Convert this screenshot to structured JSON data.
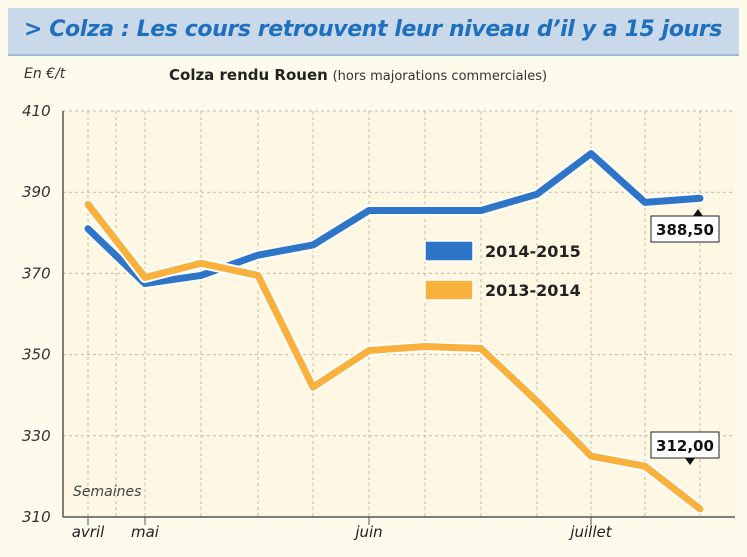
{
  "header": {
    "title": "> Colza : Les cours retrouvent leur niveau d’il y a 15 jours"
  },
  "chart_data": {
    "type": "line",
    "title": "Colza rendu Rouen",
    "subtitle": "(hors majorations commerciales)",
    "ylabel": "En €/t",
    "xlabel": "Semaines",
    "ylim": [
      310,
      410
    ],
    "yticks": [
      310,
      330,
      350,
      370,
      390,
      410
    ],
    "grid": true,
    "legend_position": "center-right",
    "x": [
      0,
      1,
      2,
      3,
      4,
      5,
      6,
      7,
      8,
      9,
      10,
      11
    ],
    "month_labels": [
      {
        "label": "avril",
        "x": 0
      },
      {
        "label": "mai",
        "x": 1
      },
      {
        "label": "juin",
        "x": 5
      },
      {
        "label": "juillet",
        "x": 9
      }
    ],
    "series": [
      {
        "name": "2014-2015",
        "color": "#2e75c8",
        "values": [
          381,
          367.5,
          369.5,
          374.5,
          377,
          385.5,
          385.5,
          385.5,
          389.5,
          399.5,
          387.5,
          388.5
        ]
      },
      {
        "name": "2013-2014",
        "color": "#f7b13c",
        "values": [
          387,
          369,
          372.5,
          369.5,
          342,
          351,
          352,
          351.5,
          338.5,
          325,
          322.5,
          312
        ]
      }
    ],
    "annotations": [
      {
        "text": "388,50",
        "series": "2014-2015"
      },
      {
        "text": "312,00",
        "series": "2013-2014"
      }
    ]
  }
}
